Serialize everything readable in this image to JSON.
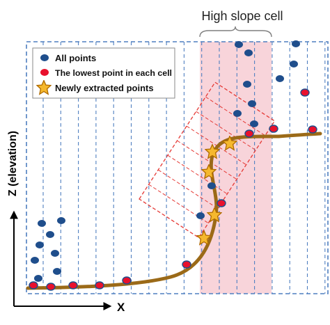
{
  "header": {
    "title": "High slope cell"
  },
  "legend": {
    "all_points": "All points",
    "lowest_point": "The lowest point in each cell",
    "new_points": "Newly extracted points"
  },
  "axes": {
    "x_label": "X",
    "y_label": "Z (elevation)"
  },
  "colors": {
    "blue_points": "#1f4e8c",
    "red_points": "#e8112d",
    "terrain_curve": "#9b6a18",
    "grid_dashes": "#4f7fc0",
    "high_slope_fill": "#f8d4da",
    "rotated_grid": "#e53935",
    "star_fill": "#f5b82e",
    "star_stroke": "#b06b00"
  },
  "icons": {
    "new_point_marker": "star-icon"
  }
}
